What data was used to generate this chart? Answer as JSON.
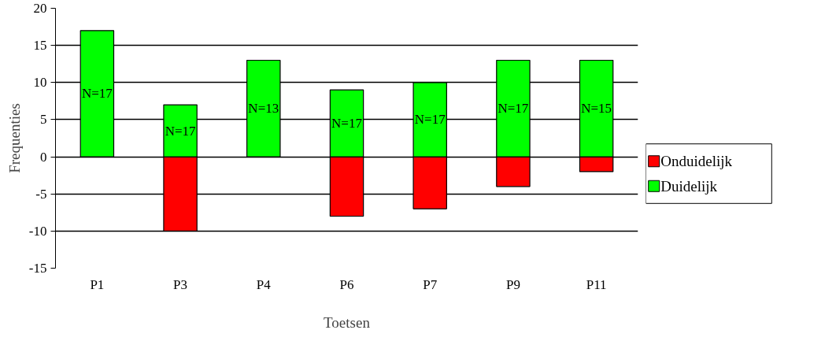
{
  "chart_data": {
    "type": "bar",
    "stacked": true,
    "xlabel": "Toetsen",
    "ylabel": "Frequenties",
    "categories": [
      "P1",
      "P3",
      "P4",
      "P6",
      "P7",
      "P9",
      "P11"
    ],
    "series": [
      {
        "name": "Onduidelijk",
        "color": "#ff0000",
        "values": [
          null,
          -10,
          null,
          -8,
          -7,
          -4,
          -2
        ]
      },
      {
        "name": "Duidelijk",
        "color": "#00ff00",
        "values": [
          17,
          7,
          13,
          9,
          10,
          13,
          13
        ]
      }
    ],
    "ylim": [
      -15,
      20
    ],
    "yticks": [
      -15,
      -10,
      -5,
      0,
      5,
      10,
      15,
      20
    ],
    "grid": "y",
    "legend": "right",
    "annotations": [
      "N=17",
      "N=17",
      "N=13",
      "N=17",
      "N=17",
      "N=17",
      "N=15"
    ]
  }
}
